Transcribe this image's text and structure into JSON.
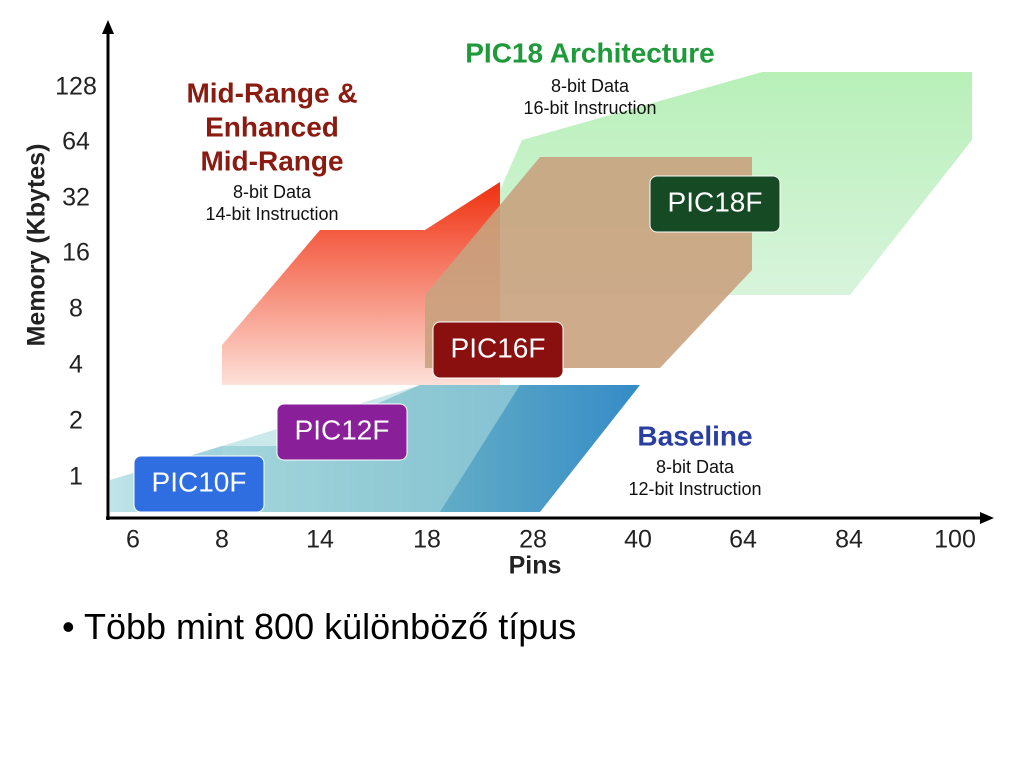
{
  "diagram": {
    "y_axis_label": "Memory (Kbytes)",
    "y_ticks": [
      "128",
      "64",
      "32",
      "16",
      "8",
      "4",
      "2",
      "1"
    ],
    "x_axis_label": "Pins",
    "x_ticks": [
      "6",
      "8",
      "14",
      "18",
      "28",
      "40",
      "64",
      "84",
      "100"
    ],
    "families": [
      {
        "title": [
          "PIC18 Architecture"
        ],
        "details": [
          "8-bit Data",
          "16-bit Instruction"
        ]
      },
      {
        "title": [
          "Mid-Range &",
          "Enhanced",
          "Mid-Range"
        ],
        "details": [
          "8-bit Data",
          "14-bit Instruction"
        ]
      },
      {
        "title": [
          "Baseline"
        ],
        "details": [
          "8-bit Data",
          "12-bit Instruction"
        ]
      }
    ],
    "chips": [
      "PIC10F",
      "PIC12F",
      "PIC16F",
      "PIC18F"
    ]
  },
  "bullets": [
    "Több mint 800 különböző típus"
  ]
}
